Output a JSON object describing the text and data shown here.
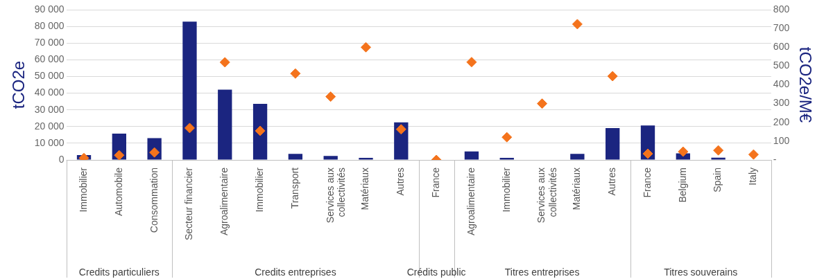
{
  "chart_data": {
    "type": "bar",
    "ylabel": "tCO2e",
    "y2label": "tCO2e/M€",
    "categories": [
      "Immobilier",
      "Automobile",
      "Consommation",
      "Secteur financier",
      "Agroalimentaire",
      "Immobilier",
      "Transport",
      "Services aux collectivités",
      "Matériaux",
      "Autres",
      "France",
      "Agroalimentaire",
      "Immobilier",
      "Services aux collectivités",
      "Matériaux",
      "Autres",
      "France",
      "Belgium",
      "Spain",
      "Italy"
    ],
    "series": [
      {
        "color": "#1b2580",
        "values": [
          2900,
          15800,
          13100,
          82800,
          42100,
          33600,
          3600,
          2400,
          1200,
          22500,
          null,
          5100,
          1200,
          null,
          3600,
          19100,
          20600,
          3900,
          1300,
          null
        ]
      },
      {
        "type": "scatter",
        "axis": "y2",
        "marker": "diamond",
        "color": "#f4731c",
        "values": [
          10,
          25,
          40,
          170,
          520,
          155,
          460,
          337,
          600,
          163,
          0,
          521,
          121,
          300,
          723,
          446,
          33,
          44,
          51,
          29
        ]
      }
    ],
    "ylim": [
      0,
      90000
    ],
    "yticks": [
      0,
      {
        "value": 10000,
        "label": "10 000"
      },
      {
        "value": 20000,
        "label": "20 000"
      },
      {
        "value": 30000,
        "label": "30 000"
      },
      {
        "value": 40000,
        "label": "40 000"
      },
      {
        "value": 50000,
        "label": "50 000"
      },
      {
        "value": 60000,
        "label": "60 000"
      },
      {
        "value": 70000,
        "label": "70 000"
      },
      {
        "value": 80000,
        "label": "80 000"
      },
      {
        "value": 90000,
        "label": "90 000"
      }
    ],
    "y2lim": [
      0,
      800
    ],
    "y2ticks": [
      {
        "value": 0,
        "label": "-"
      },
      100,
      200,
      300,
      400,
      500,
      600,
      700,
      800
    ],
    "grid": "y",
    "legend": false,
    "annotations": [
      "Credits particuliers",
      "Credits entreprises",
      "Crédits public",
      "Titres entreprises",
      "Titres souverains"
    ]
  }
}
